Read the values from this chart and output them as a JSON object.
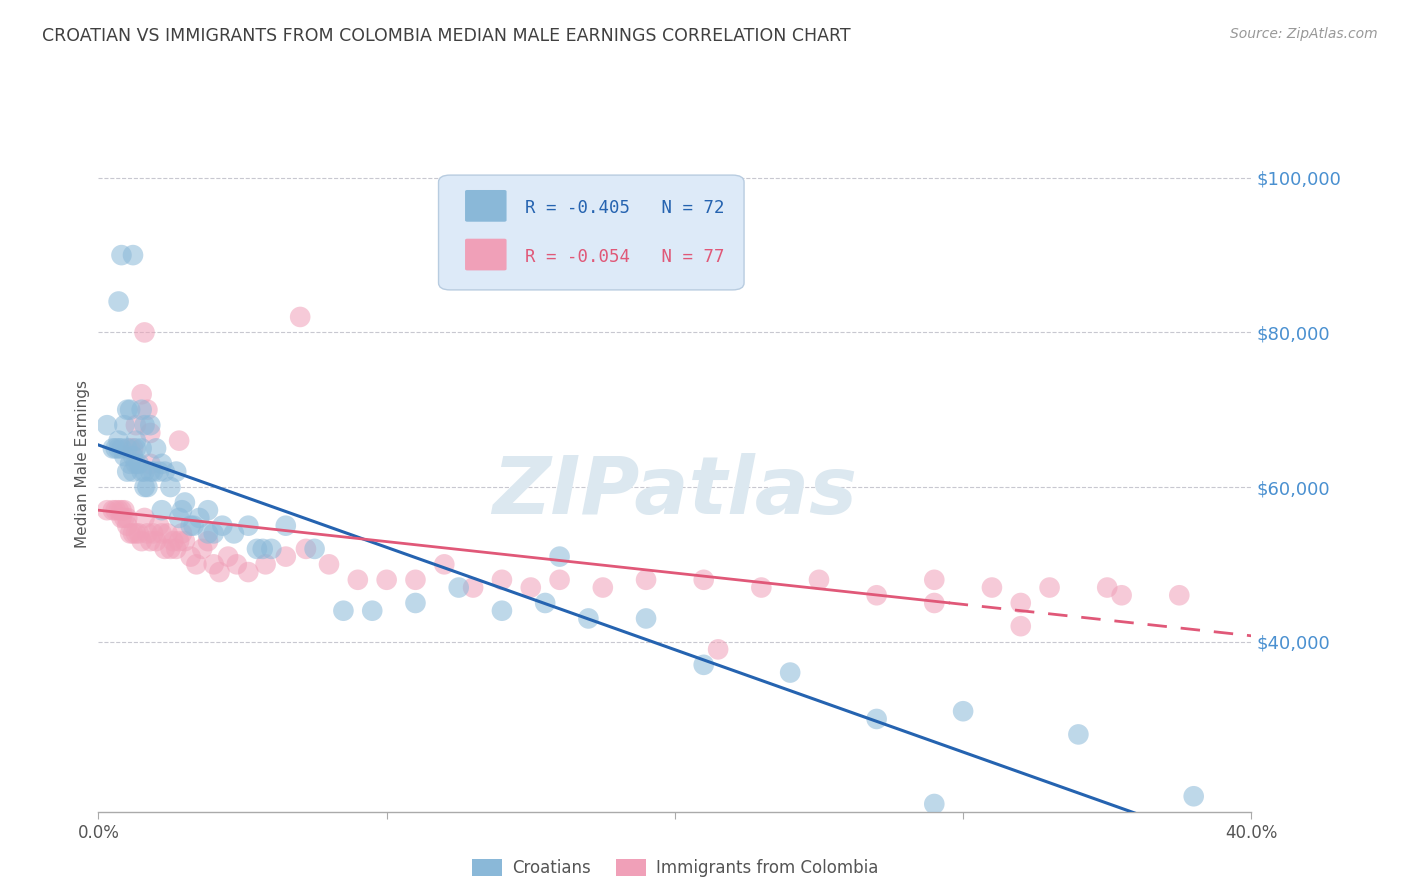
{
  "title": "CROATIAN VS IMMIGRANTS FROM COLOMBIA MEDIAN MALE EARNINGS CORRELATION CHART",
  "source": "Source: ZipAtlas.com",
  "ylabel": "Median Male Earnings",
  "right_yticks": [
    40000,
    60000,
    80000,
    100000
  ],
  "right_yticklabels": [
    "$40,000",
    "$60,000",
    "$80,000",
    "$100,000"
  ],
  "xlim": [
    0.0,
    0.4
  ],
  "ylim": [
    18000,
    108000
  ],
  "croatian_R": -0.405,
  "croatian_N": 72,
  "colombia_R": -0.054,
  "colombia_N": 77,
  "croatian_color": "#8ab8d8",
  "colombia_color": "#f0a0b8",
  "trendline_croatian_color": "#2563b0",
  "trendline_colombia_color": "#e05878",
  "background_color": "#ffffff",
  "grid_color": "#c8c8d0",
  "title_color": "#404040",
  "right_axis_label_color": "#4a90d0",
  "watermark_color": "#dce8f0",
  "legend_box_color": "#ddeaf8",
  "legend_edge_color": "#b8cce0",
  "croatian_x": [
    0.003,
    0.005,
    0.006,
    0.007,
    0.007,
    0.008,
    0.008,
    0.009,
    0.009,
    0.01,
    0.01,
    0.01,
    0.011,
    0.011,
    0.012,
    0.012,
    0.012,
    0.013,
    0.013,
    0.014,
    0.015,
    0.015,
    0.015,
    0.016,
    0.016,
    0.017,
    0.018,
    0.018,
    0.019,
    0.02,
    0.021,
    0.022,
    0.023,
    0.025,
    0.027,
    0.029,
    0.03,
    0.032,
    0.035,
    0.038,
    0.04,
    0.043,
    0.047,
    0.052,
    0.055,
    0.06,
    0.065,
    0.075,
    0.085,
    0.095,
    0.11,
    0.125,
    0.14,
    0.155,
    0.17,
    0.19,
    0.21,
    0.24,
    0.27,
    0.3,
    0.34,
    0.38,
    0.007,
    0.013,
    0.016,
    0.022,
    0.028,
    0.033,
    0.038,
    0.057,
    0.16,
    0.29
  ],
  "croatian_y": [
    68000,
    65000,
    65000,
    66000,
    84000,
    65000,
    90000,
    64000,
    68000,
    62000,
    65000,
    70000,
    63000,
    70000,
    62000,
    64000,
    90000,
    63000,
    65000,
    63000,
    62000,
    65000,
    70000,
    62000,
    68000,
    60000,
    62000,
    68000,
    62000,
    65000,
    62000,
    63000,
    62000,
    60000,
    62000,
    57000,
    58000,
    55000,
    56000,
    57000,
    54000,
    55000,
    54000,
    55000,
    52000,
    52000,
    55000,
    52000,
    44000,
    44000,
    45000,
    47000,
    44000,
    45000,
    43000,
    43000,
    37000,
    36000,
    30000,
    31000,
    28000,
    20000,
    65000,
    66000,
    60000,
    57000,
    56000,
    55000,
    54000,
    52000,
    51000,
    19000
  ],
  "colombia_x": [
    0.003,
    0.005,
    0.006,
    0.007,
    0.008,
    0.009,
    0.009,
    0.01,
    0.01,
    0.011,
    0.011,
    0.012,
    0.013,
    0.013,
    0.014,
    0.015,
    0.015,
    0.016,
    0.016,
    0.017,
    0.017,
    0.018,
    0.018,
    0.019,
    0.02,
    0.021,
    0.022,
    0.023,
    0.024,
    0.025,
    0.026,
    0.027,
    0.028,
    0.029,
    0.03,
    0.032,
    0.034,
    0.036,
    0.038,
    0.04,
    0.042,
    0.045,
    0.048,
    0.052,
    0.058,
    0.065,
    0.072,
    0.08,
    0.09,
    0.1,
    0.11,
    0.12,
    0.13,
    0.14,
    0.15,
    0.16,
    0.175,
    0.19,
    0.21,
    0.23,
    0.25,
    0.27,
    0.29,
    0.31,
    0.33,
    0.35,
    0.375,
    0.008,
    0.012,
    0.018,
    0.028,
    0.07,
    0.29,
    0.32,
    0.355,
    0.215,
    0.32
  ],
  "colombia_y": [
    57000,
    57000,
    57000,
    57000,
    56000,
    57000,
    56000,
    56000,
    55000,
    54000,
    65000,
    54000,
    54000,
    68000,
    54000,
    72000,
    53000,
    80000,
    56000,
    54000,
    70000,
    53000,
    67000,
    54000,
    53000,
    55000,
    54000,
    52000,
    54000,
    52000,
    53000,
    52000,
    53000,
    54000,
    53000,
    51000,
    50000,
    52000,
    53000,
    50000,
    49000,
    51000,
    50000,
    49000,
    50000,
    51000,
    52000,
    50000,
    48000,
    48000,
    48000,
    50000,
    47000,
    48000,
    47000,
    48000,
    47000,
    48000,
    48000,
    47000,
    48000,
    46000,
    48000,
    47000,
    47000,
    47000,
    46000,
    57000,
    65000,
    63000,
    66000,
    82000,
    45000,
    45000,
    46000,
    39000,
    42000
  ]
}
